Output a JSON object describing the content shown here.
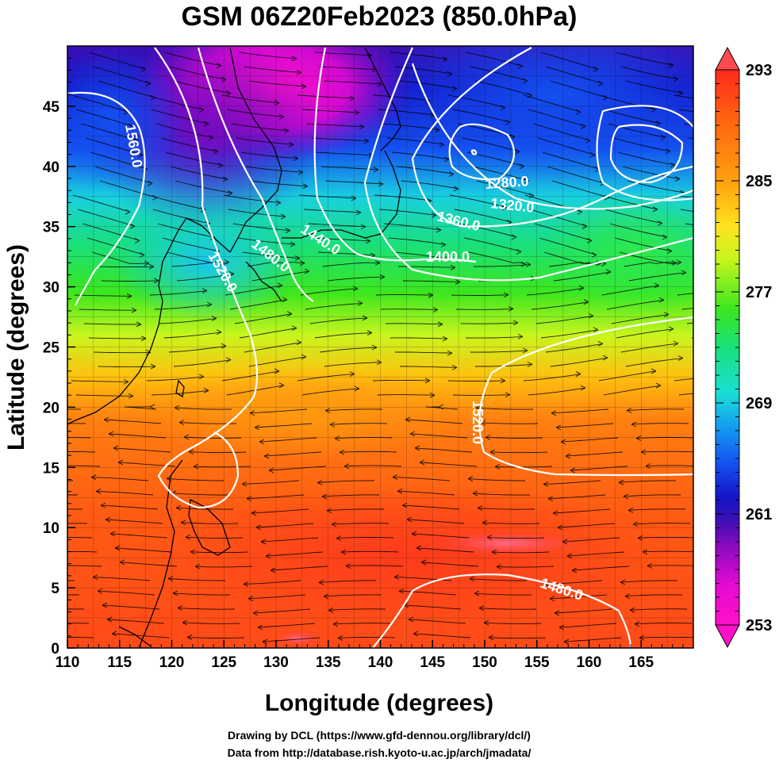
{
  "title": "GSM 06Z20Feb2023 (850.0hPa)",
  "x_axis": {
    "label": "Longitude (degrees)",
    "range": [
      110,
      170
    ],
    "ticks": [
      "110",
      "115",
      "120",
      "125",
      "130",
      "135",
      "140",
      "145",
      "150",
      "155",
      "160",
      "165"
    ]
  },
  "y_axis": {
    "label": "Latitude  (degrees)",
    "range": [
      0,
      50
    ],
    "ticks": [
      "0",
      "5",
      "10",
      "15",
      "20",
      "25",
      "30",
      "35",
      "40",
      "45"
    ]
  },
  "colorbar": {
    "range": [
      253,
      293
    ],
    "labels": [
      "293",
      "285",
      "277",
      "269",
      "261",
      "253"
    ],
    "colors": [
      "#ff2a5a",
      "#ff3a1c",
      "#ff6a10",
      "#ffa010",
      "#ffe21e",
      "#c8f51e",
      "#3ce61e",
      "#19e07a",
      "#19e0d2",
      "#14a0f0",
      "#1450f0",
      "#1414c8",
      "#3a10b4",
      "#8c0abe",
      "#e60ad2",
      "#ff10c8"
    ]
  },
  "contours": [
    {
      "label": "1560.0"
    },
    {
      "label": "1520.0"
    },
    {
      "label": "1480.0"
    },
    {
      "label": "1440.0"
    },
    {
      "label": "1400.0"
    },
    {
      "label": "1360.0"
    },
    {
      "label": "1320.0"
    },
    {
      "label": "1280.0"
    },
    {
      "label": "1520.0"
    },
    {
      "label": "1480.0"
    }
  ],
  "credits": {
    "line1": "Drawing by DCL (https://www.gfd-dennou.org/library/dcl/)",
    "line2": "Data from http://database.rish.kyoto-u.ac.jp/arch/jmadata/"
  }
}
